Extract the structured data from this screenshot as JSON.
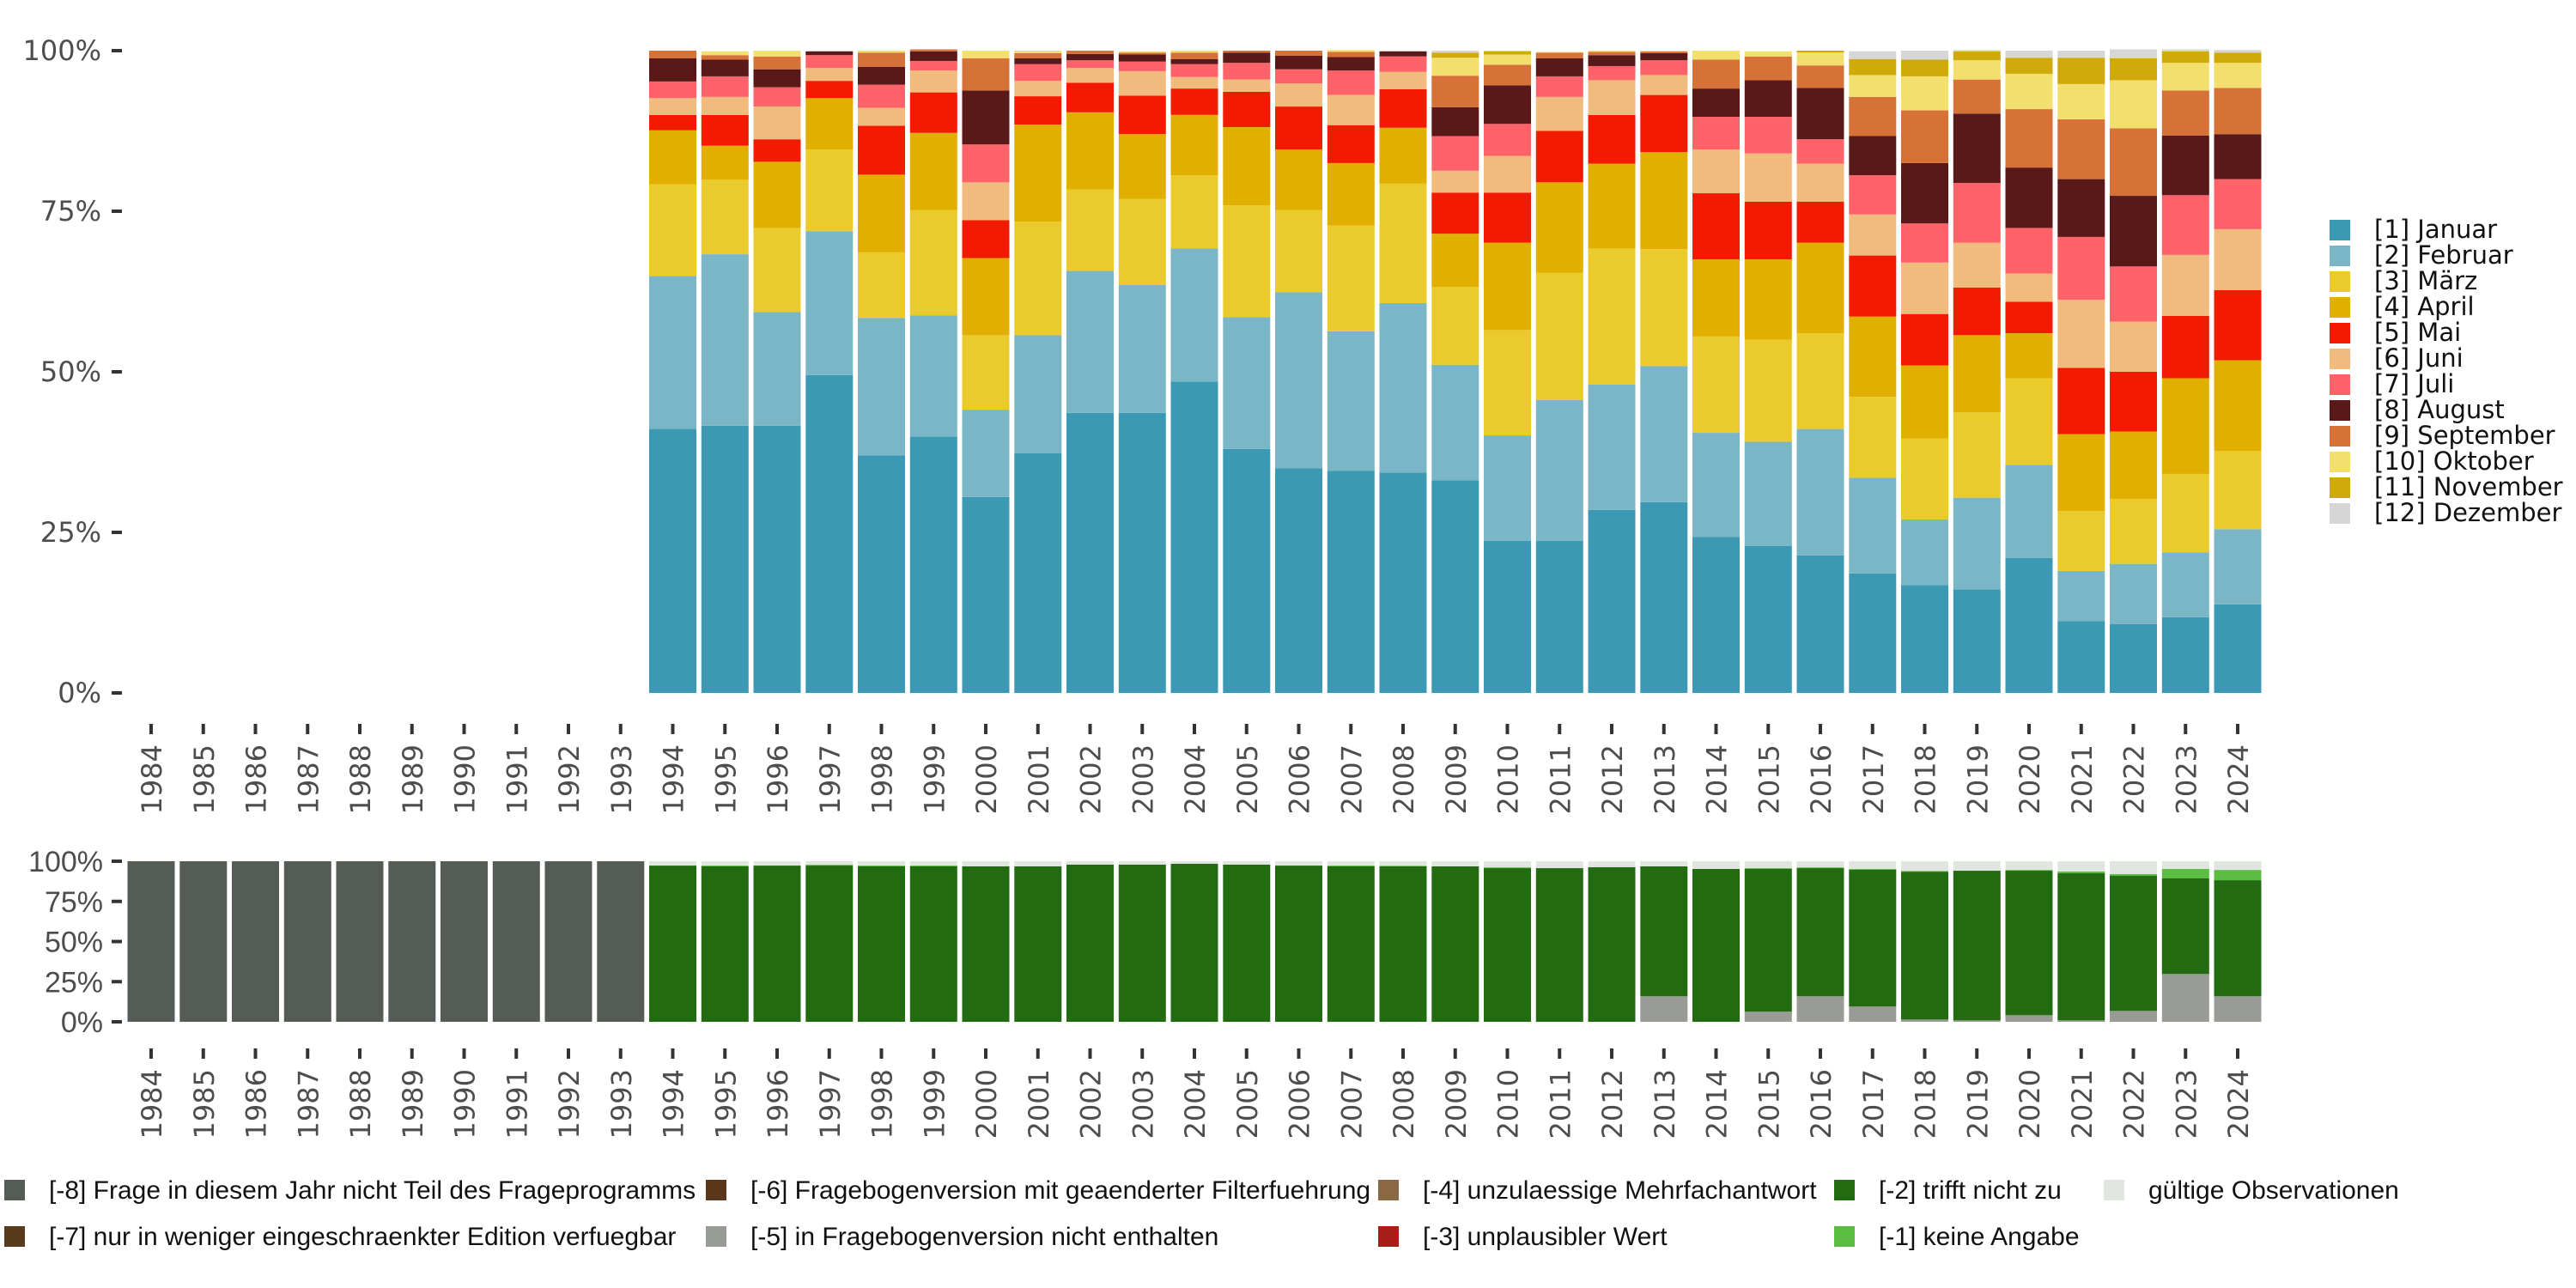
{
  "chart_data": [
    {
      "type": "bar",
      "stacked": true,
      "normalized": true,
      "title": "",
      "xlabel": "",
      "ylabel": "",
      "ylim": [
        0,
        100
      ],
      "ytick_labels": [
        "0%",
        "25%",
        "50%",
        "75%",
        "100%"
      ],
      "yticks": [
        0,
        25,
        50,
        75,
        100
      ],
      "grid": false,
      "legend_position": "right",
      "categories": [
        "1984",
        "1985",
        "1986",
        "1987",
        "1988",
        "1989",
        "1990",
        "1991",
        "1992",
        "1993",
        "1994",
        "1995",
        "1996",
        "1997",
        "1998",
        "1999",
        "2000",
        "2001",
        "2002",
        "2003",
        "2004",
        "2005",
        "2006",
        "2007",
        "2008",
        "2009",
        "2010",
        "2011",
        "2012",
        "2013",
        "2014",
        "2015",
        "2016",
        "2017",
        "2018",
        "2019",
        "2020",
        "2021",
        "2022",
        "2023",
        "2024"
      ],
      "series": [
        {
          "name": "[1] Januar",
          "color": "#3C99B3",
          "values": [
            0,
            0,
            0,
            0,
            0,
            0,
            0,
            0,
            0,
            0,
            41.1,
            41.6,
            41.6,
            49.5,
            37.0,
            39.9,
            30.5,
            37.3,
            43.6,
            43.6,
            48.5,
            38.0,
            35.0,
            34.6,
            34.3,
            33.1,
            23.7,
            23.7,
            28.5,
            29.7,
            24.3,
            22.9,
            21.4,
            18.6,
            16.8,
            16.1,
            21.0,
            11.2,
            10.7,
            11.8,
            13.8
          ]
        },
        {
          "name": "[2] Februar",
          "color": "#7AB6C5",
          "values": [
            0,
            0,
            0,
            0,
            0,
            0,
            0,
            0,
            0,
            0,
            23.8,
            26.7,
            17.7,
            22.4,
            21.4,
            18.9,
            13.6,
            18.4,
            22.1,
            19.9,
            20.7,
            20.5,
            27.4,
            21.7,
            26.4,
            18.0,
            16.4,
            21.9,
            19.5,
            21.2,
            16.2,
            16.2,
            19.7,
            14.9,
            10.2,
            14.3,
            14.5,
            7.8,
            9.4,
            10.1,
            11.7
          ]
        },
        {
          "name": "[3] März",
          "color": "#EBCB2C",
          "values": [
            0,
            0,
            0,
            0,
            0,
            0,
            0,
            0,
            0,
            0,
            14.3,
            11.6,
            13.1,
            12.7,
            10.2,
            16.4,
            11.6,
            17.7,
            12.7,
            13.4,
            11.4,
            17.4,
            12.8,
            16.5,
            18.6,
            12.1,
            16.4,
            19.8,
            21.2,
            18.2,
            15.0,
            15.9,
            14.9,
            12.6,
            12.6,
            13.3,
            13.5,
            9.3,
            10.1,
            12.2,
            12.2
          ]
        },
        {
          "name": "[4] April",
          "color": "#E0AF00",
          "values": [
            0,
            0,
            0,
            0,
            0,
            0,
            0,
            0,
            0,
            0,
            8.4,
            5.3,
            10.3,
            8.0,
            12.1,
            12.0,
            12.0,
            15.1,
            12.0,
            10.1,
            9.4,
            12.2,
            9.4,
            9.7,
            8.7,
            8.3,
            13.6,
            14.1,
            13.2,
            15.1,
            12.0,
            12.5,
            14.1,
            12.5,
            11.4,
            12.0,
            7.0,
            12.0,
            10.5,
            14.9,
            14.1
          ]
        },
        {
          "name": "[5] Mai",
          "color": "#F21A00",
          "values": [
            0,
            0,
            0,
            0,
            0,
            0,
            0,
            0,
            0,
            0,
            2.4,
            4.8,
            3.5,
            2.7,
            7.6,
            6.3,
            5.9,
            4.4,
            4.6,
            6.0,
            4.1,
            5.5,
            6.7,
            5.9,
            6.0,
            6.4,
            7.8,
            8.0,
            7.6,
            8.9,
            10.3,
            9.0,
            6.4,
            9.5,
            8.0,
            7.4,
            4.9,
            10.3,
            9.3,
            9.7,
            10.9
          ]
        },
        {
          "name": "[6] Juni",
          "color": "#F1BB7E",
          "values": [
            0,
            0,
            0,
            0,
            0,
            0,
            0,
            0,
            0,
            0,
            2.6,
            2.8,
            5.1,
            2.0,
            2.8,
            3.4,
            5.9,
            2.4,
            2.3,
            3.8,
            1.8,
            1.9,
            3.6,
            4.7,
            2.7,
            3.4,
            5.7,
            5.3,
            5.4,
            3.1,
            6.8,
            7.5,
            5.9,
            6.4,
            8.0,
            7.0,
            4.4,
            10.6,
            7.8,
            9.5,
            9.5
          ]
        },
        {
          "name": "[7] Juli",
          "color": "#FF6369",
          "values": [
            0,
            0,
            0,
            0,
            0,
            0,
            0,
            0,
            0,
            0,
            2.6,
            3.2,
            3.0,
            2.0,
            3.6,
            1.5,
            5.9,
            2.6,
            1.2,
            1.5,
            2.0,
            2.6,
            2.2,
            3.8,
            2.4,
            5.4,
            5.0,
            3.2,
            2.2,
            2.3,
            5.1,
            5.7,
            3.8,
            6.1,
            6.1,
            9.3,
            7.1,
            9.8,
            8.6,
            9.3,
            7.8
          ]
        },
        {
          "name": "[8] August",
          "color": "#5A1919",
          "values": [
            0,
            0,
            0,
            0,
            0,
            0,
            0,
            0,
            0,
            0,
            3.6,
            2.6,
            2.8,
            0.6,
            2.8,
            1.5,
            8.4,
            0.9,
            1.0,
            1.1,
            0.8,
            1.6,
            2.1,
            2.1,
            0.8,
            4.5,
            6.0,
            2.8,
            1.7,
            1.1,
            4.4,
            5.7,
            8.0,
            6.1,
            9.4,
            10.8,
            9.4,
            9.0,
            11.0,
            9.3,
            7.0
          ]
        },
        {
          "name": "[9] September",
          "color": "#D67237",
          "values": [
            0,
            0,
            0,
            0,
            0,
            0,
            0,
            0,
            0,
            0,
            1.2,
            0.7,
            2.0,
            0,
            2.2,
            0.3,
            5.0,
            0.8,
            0.5,
            0.3,
            1.0,
            0.3,
            0.8,
            0.8,
            0,
            4.9,
            3.2,
            0.9,
            0.5,
            0.3,
            4.5,
            3.7,
            3.5,
            6.1,
            8.2,
            5.3,
            9.1,
            9.3,
            10.5,
            7.0,
            7.2
          ]
        },
        {
          "name": "[10] Oktober",
          "color": "#F2DF6E",
          "values": [
            0,
            0,
            0,
            0,
            0,
            0,
            0,
            0,
            0,
            0,
            0,
            0.6,
            0.9,
            0,
            0.3,
            0,
            1.2,
            0.4,
            0,
            0.2,
            0.3,
            0,
            0,
            0.3,
            0,
            2.8,
            1.6,
            0.1,
            0.2,
            0,
            1.4,
            0.8,
            2.0,
            3.4,
            5.3,
            3.0,
            5.5,
            5.5,
            7.5,
            4.3,
            3.9
          ]
        },
        {
          "name": "[11] November",
          "color": "#CFAA0A",
          "values": [
            0,
            0,
            0,
            0,
            0,
            0,
            0,
            0,
            0,
            0,
            0,
            0,
            0,
            0,
            0,
            0,
            0,
            0,
            0,
            0,
            0,
            0,
            0,
            0,
            0,
            0.8,
            0.5,
            0,
            0,
            0,
            0,
            0,
            0.3,
            2.5,
            2.6,
            1.4,
            2.5,
            4.1,
            3.4,
            1.8,
            1.6
          ]
        },
        {
          "name": "[12] Dezember",
          "color": "#D6D6D6",
          "values": [
            0,
            0,
            0,
            0,
            0,
            0,
            0,
            0,
            0,
            0,
            0,
            0,
            0,
            0,
            0,
            0,
            0,
            0,
            0,
            0,
            0,
            0,
            0,
            0,
            0,
            0.3,
            0.1,
            0,
            0,
            0,
            0,
            0,
            0,
            1.2,
            1.4,
            0.2,
            1.1,
            1.1,
            1.4,
            0.3,
            0.4
          ]
        }
      ]
    },
    {
      "type": "bar",
      "stacked": true,
      "normalized": true,
      "title": "",
      "xlabel": "",
      "ylabel": "",
      "ylim": [
        0,
        100
      ],
      "ytick_labels": [
        "0%",
        "25%",
        "50%",
        "75%",
        "100%"
      ],
      "yticks": [
        0,
        25,
        50,
        75,
        100
      ],
      "grid": false,
      "legend_position": "bottom",
      "categories": [
        "1984",
        "1985",
        "1986",
        "1987",
        "1988",
        "1989",
        "1990",
        "1991",
        "1992",
        "1993",
        "1994",
        "1995",
        "1996",
        "1997",
        "1998",
        "1999",
        "2000",
        "2001",
        "2002",
        "2003",
        "2004",
        "2005",
        "2006",
        "2007",
        "2008",
        "2009",
        "2010",
        "2011",
        "2012",
        "2013",
        "2014",
        "2015",
        "2016",
        "2017",
        "2018",
        "2019",
        "2020",
        "2021",
        "2022",
        "2023",
        "2024"
      ],
      "series": [
        {
          "name": "[-8] Frage in diesem Jahr nicht Teil des Frageprogramms",
          "color": "#555B55",
          "values": [
            100,
            100,
            100,
            100,
            100,
            100,
            100,
            100,
            100,
            100,
            0,
            0,
            0,
            0,
            0,
            0,
            0,
            0,
            0,
            0,
            0,
            0,
            0,
            0,
            0,
            0,
            0,
            0,
            0,
            0,
            0,
            0,
            0,
            0,
            0,
            0,
            0,
            0,
            0,
            0,
            0
          ]
        },
        {
          "name": "[-7] nur in weniger eingeschraenkter Edition verfuegbar",
          "color": "#573B1C",
          "values": [
            0,
            0,
            0,
            0,
            0,
            0,
            0,
            0,
            0,
            0,
            0,
            0,
            0,
            0,
            0,
            0,
            0,
            0,
            0,
            0,
            0,
            0,
            0,
            0,
            0,
            0,
            0,
            0,
            0,
            0,
            0,
            0,
            0,
            0,
            0,
            0,
            0,
            0,
            0,
            0,
            0
          ]
        },
        {
          "name": "[-6] Fragebogenversion mit geaenderter Filterfuehrung",
          "color": "#5B361B",
          "values": [
            0,
            0,
            0,
            0,
            0,
            0,
            0,
            0,
            0,
            0,
            0,
            0,
            0,
            0,
            0,
            0,
            0,
            0,
            0,
            0,
            0,
            0,
            0,
            0,
            0,
            0,
            0,
            0,
            0,
            0,
            0,
            0,
            0,
            0,
            0,
            0,
            0,
            0,
            0,
            0,
            0
          ]
        },
        {
          "name": "[-5] in Fragebogenversion nicht enthalten",
          "color": "#999C96",
          "values": [
            0,
            0,
            0,
            0,
            0,
            0,
            0,
            0,
            0,
            0,
            0,
            0,
            0,
            0,
            0,
            0,
            0,
            0,
            0,
            0,
            0,
            0,
            0,
            0,
            0,
            0,
            0,
            0,
            0,
            15.9,
            0,
            6.3,
            15.9,
            9.5,
            1.4,
            0.9,
            4.1,
            0.9,
            6.8,
            29.8,
            15.9
          ]
        },
        {
          "name": "[-4] unzulaessige Mehrfachantwort",
          "color": "#8A6843",
          "values": [
            0,
            0,
            0,
            0,
            0,
            0,
            0,
            0,
            0,
            0,
            0,
            0,
            0,
            0,
            0,
            0,
            0,
            0,
            0,
            0,
            0,
            0,
            0,
            0,
            0,
            0,
            0,
            0,
            0,
            0,
            0,
            0,
            0,
            0,
            0,
            0,
            0,
            0,
            0,
            0,
            0
          ]
        },
        {
          "name": "[-3] unplausibler Wert",
          "color": "#A81E16",
          "values": [
            0,
            0,
            0,
            0,
            0,
            0,
            0,
            0,
            0,
            0,
            0,
            0,
            0,
            0,
            0,
            0,
            0,
            0,
            0,
            0,
            0,
            0,
            0,
            0,
            0,
            0,
            0,
            0,
            0,
            0,
            0,
            0,
            0,
            0,
            0,
            0,
            0,
            0,
            0,
            0,
            0
          ]
        },
        {
          "name": "[-2] trifft nicht zu",
          "color": "#226B11",
          "values": [
            0,
            0,
            0,
            0,
            0,
            0,
            0,
            0,
            0,
            0,
            97.3,
            96.8,
            97.3,
            97.3,
            96.8,
            96.8,
            96.8,
            96.8,
            97.9,
            97.9,
            98.4,
            97.9,
            97.3,
            96.8,
            96.8,
            96.8,
            95.7,
            95.7,
            96.3,
            80.9,
            95.2,
            88.9,
            79.8,
            85.2,
            92.1,
            93.2,
            90.0,
            91.6,
            84.1,
            59.5,
            72.3
          ]
        },
        {
          "name": "[-1] keine Angabe",
          "color": "#5BBE42",
          "values": [
            0,
            0,
            0,
            0,
            0,
            0,
            0,
            0,
            0,
            0,
            0,
            0.5,
            0,
            0.5,
            0.5,
            0.5,
            0,
            0,
            0,
            0,
            0,
            0,
            0,
            0.5,
            0.4,
            0,
            0.5,
            0,
            0,
            0,
            0,
            0.5,
            0.5,
            0.5,
            0.5,
            0,
            0.5,
            1.1,
            1.1,
            5.9,
            6.4
          ]
        },
        {
          "name": "gültige Observationen",
          "color": "#E1E5E0",
          "values": [
            0,
            0,
            0,
            0,
            0,
            0,
            0,
            0,
            0,
            0,
            2.7,
            2.7,
            2.7,
            2.2,
            2.7,
            2.7,
            3.2,
            3.2,
            2.1,
            2.1,
            1.6,
            2.1,
            2.7,
            2.7,
            2.8,
            3.2,
            3.8,
            4.3,
            3.7,
            3.2,
            4.8,
            4.3,
            3.8,
            4.8,
            5.9,
            5.9,
            5.4,
            6.4,
            8.0,
            4.8,
            5.4
          ]
        }
      ]
    }
  ]
}
